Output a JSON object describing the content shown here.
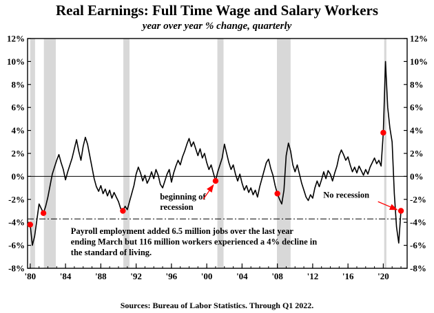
{
  "title": "Real Earnings: Full Time Wage and Salary Workers",
  "subtitle": "year over year % change, quarterly",
  "footer": "Sources: Bureau of Labor Statistics. Through Q1 2022.",
  "colors": {
    "line": "#000000",
    "dot": "#ff0000",
    "arrow": "#ff0000",
    "band": "#d8d8d8",
    "axis": "#000000"
  },
  "chart_data": {
    "type": "line",
    "title": "Real Earnings: Full Time Wage and Salary Workers",
    "subtitle": "year over year % change, quarterly",
    "x_start": 1980.0,
    "x_step": 0.25,
    "xlim": [
      1979.7,
      2022.7
    ],
    "ylim": [
      -8,
      12
    ],
    "y_ticks": [
      -8,
      -6,
      -4,
      -2,
      0,
      2,
      4,
      6,
      8,
      10,
      12
    ],
    "y_tick_labels": [
      "-8%",
      "-6%",
      "-4%",
      "-2%",
      "0%",
      "2%",
      "4%",
      "6%",
      "8%",
      "10%",
      "12%"
    ],
    "x_tick_years": [
      1980,
      1984,
      1988,
      1992,
      1996,
      2000,
      2004,
      2008,
      2012,
      2016,
      2020
    ],
    "x_tick_labels": [
      "'80",
      "'84",
      "'88",
      "'92",
      "'96",
      "'00",
      "'04",
      "'08",
      "'12",
      "'16",
      "'20"
    ],
    "zero_line": 0,
    "dashdot_line": -3.7,
    "values": [
      -4.2,
      -6.0,
      -5.2,
      -3.8,
      -2.4,
      -2.8,
      -3.2,
      -2.6,
      -1.8,
      -0.8,
      0.2,
      0.8,
      1.4,
      1.9,
      1.2,
      0.6,
      -0.3,
      0.4,
      1.0,
      1.6,
      2.4,
      3.2,
      2.2,
      1.4,
      2.6,
      3.4,
      2.8,
      1.8,
      0.8,
      -0.2,
      -0.9,
      -1.3,
      -0.8,
      -1.5,
      -1.1,
      -1.7,
      -1.2,
      -1.9,
      -1.4,
      -1.8,
      -2.2,
      -2.8,
      -3.0,
      -2.6,
      -2.9,
      -2.2,
      -1.5,
      -0.8,
      0.2,
      0.8,
      0.3,
      -0.4,
      0.1,
      -0.6,
      -0.2,
      0.4,
      -0.2,
      0.6,
      0.1,
      -0.7,
      -1.0,
      -0.4,
      0.2,
      0.6,
      -0.5,
      0.3,
      0.9,
      1.4,
      1.0,
      1.7,
      2.2,
      2.8,
      3.3,
      2.6,
      3.0,
      2.4,
      1.8,
      2.4,
      1.6,
      2.0,
      1.2,
      0.6,
      1.0,
      0.3,
      -0.4,
      0.4,
      1.0,
      1.6,
      2.8,
      2.0,
      1.2,
      0.6,
      1.0,
      0.2,
      -0.4,
      0.2,
      -0.6,
      -1.2,
      -0.8,
      -1.4,
      -1.0,
      -1.6,
      -1.2,
      -1.8,
      -0.9,
      -0.2,
      0.5,
      1.2,
      1.5,
      0.7,
      0.1,
      -0.8,
      -1.5,
      -2.0,
      -2.4,
      -1.2,
      1.8,
      2.9,
      2.2,
      1.0,
      0.4,
      1.0,
      0.2,
      -0.6,
      -1.2,
      -1.8,
      -2.1,
      -1.6,
      -1.9,
      -1.0,
      -0.4,
      -0.9,
      -0.3,
      0.4,
      -0.2,
      0.5,
      0.2,
      -0.4,
      0.3,
      0.9,
      1.8,
      2.3,
      1.9,
      1.4,
      1.7,
      1.0,
      0.4,
      0.8,
      0.3,
      0.9,
      0.5,
      0.1,
      0.6,
      0.2,
      0.8,
      1.2,
      1.6,
      1.1,
      1.4,
      0.9,
      3.8,
      10.0,
      6.0,
      4.2,
      3.0,
      -1.5,
      -4.4,
      -5.8,
      -3.0
    ],
    "recession_bands": [
      [
        1980.0,
        1980.55
      ],
      [
        1981.55,
        1982.9
      ],
      [
        1990.55,
        1991.25
      ],
      [
        2001.2,
        2001.9
      ],
      [
        2007.95,
        2009.5
      ],
      [
        2020.1,
        2020.35
      ]
    ],
    "red_dots": [
      {
        "x": 1980.0,
        "y": -4.2
      },
      {
        "x": 1981.5,
        "y": -3.2
      },
      {
        "x": 1990.5,
        "y": -3.0
      },
      {
        "x": 2001.0,
        "y": -0.4
      },
      {
        "x": 2008.0,
        "y": -1.5
      },
      {
        "x": 2020.0,
        "y": 3.8
      },
      {
        "x": 2022.0,
        "y": -3.0
      }
    ],
    "annotations": [
      {
        "id": "beginning-of-recession",
        "lines": [
          "beginning of",
          "recession"
        ],
        "text_x": 1994.7,
        "text_y": -2.0,
        "arrow_from": [
          1999.6,
          -2.0
        ],
        "arrow_to": [
          2000.75,
          -0.75
        ]
      },
      {
        "id": "no-recession",
        "lines": [
          "No recession"
        ],
        "text_x": 2013.2,
        "text_y": -1.85,
        "arrow_from": [
          2019.4,
          -2.2
        ],
        "arrow_to": [
          2021.55,
          -2.9
        ]
      }
    ],
    "note": {
      "lines": [
        "Payroll employment added 6.5 million jobs over the last year",
        "ending March but 116 million workers experienced a 4% decline in",
        "the standard of living."
      ],
      "x": 1984.6,
      "y": -5.0
    }
  }
}
